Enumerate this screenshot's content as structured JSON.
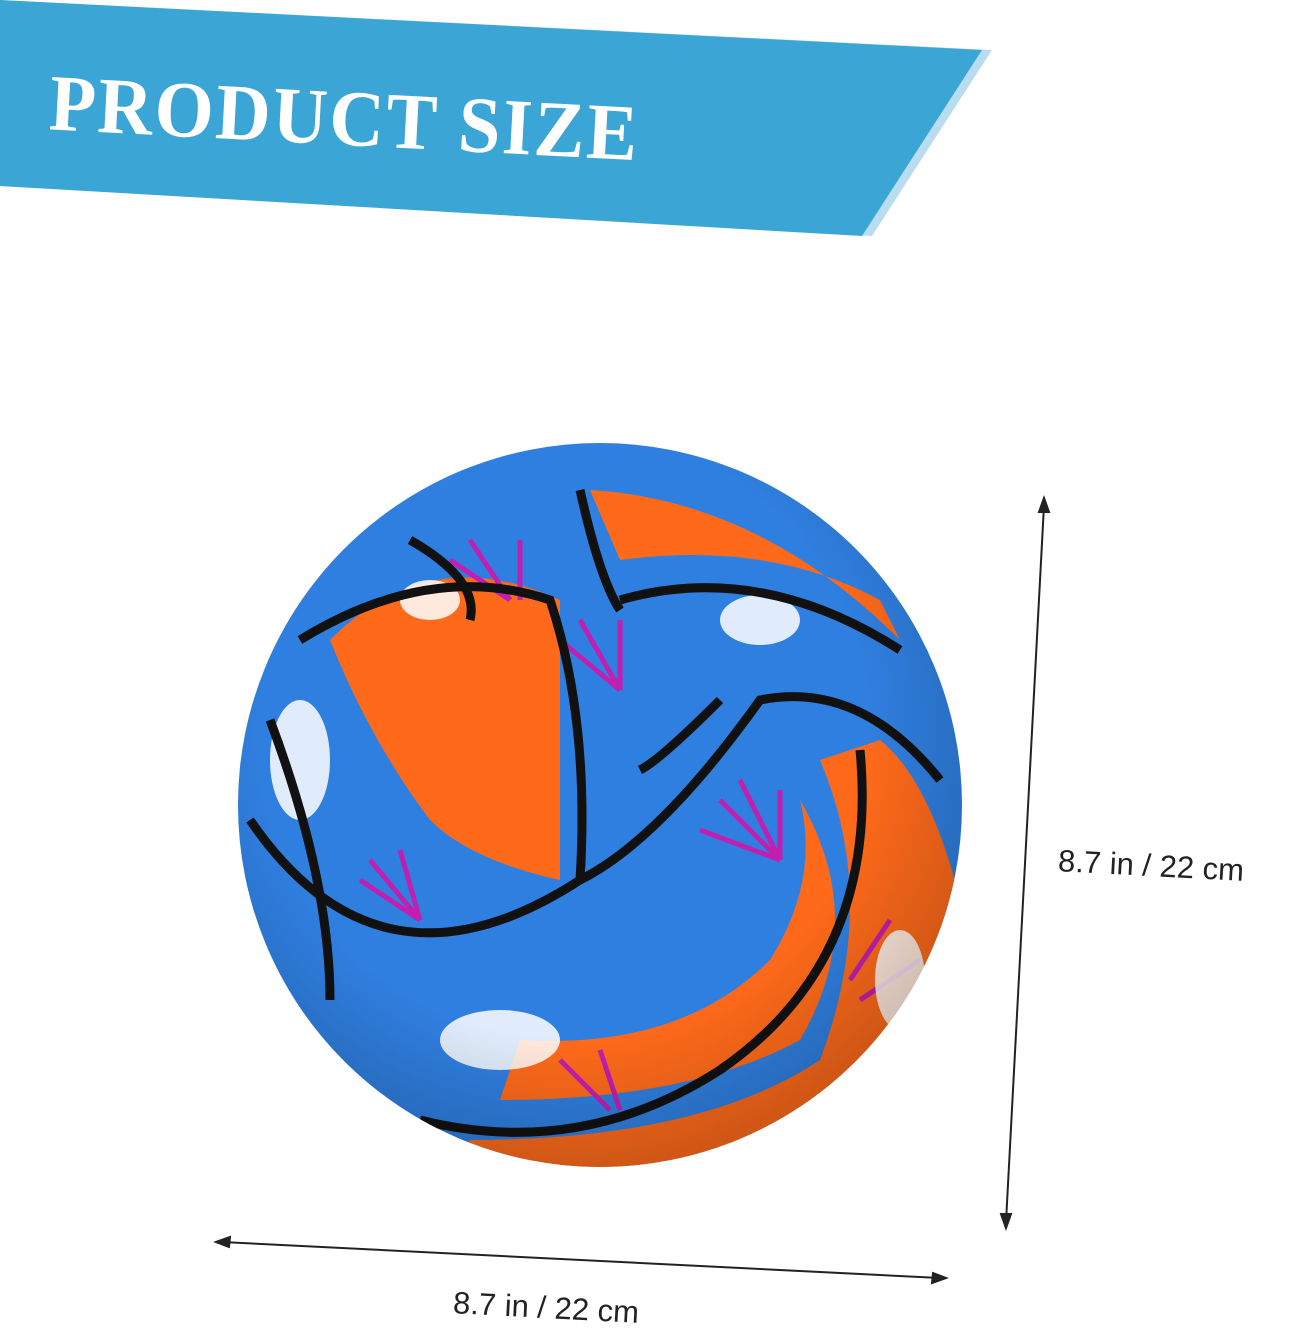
{
  "banner": {
    "title": "PRODUCT SIZE",
    "color": "#3ba5d6",
    "edge_color": "#b9dcef"
  },
  "dimensions": {
    "height_label": "8.7 in / 22 cm",
    "width_label": "8.7 in / 22 cm"
  },
  "product": {
    "name_icon": "volleyball-image",
    "colors": {
      "blue": "#2f7fe0",
      "orange": "#ff6a1a",
      "pink": "#c21fb0",
      "white": "#ffffff",
      "seam": "#111111"
    }
  }
}
